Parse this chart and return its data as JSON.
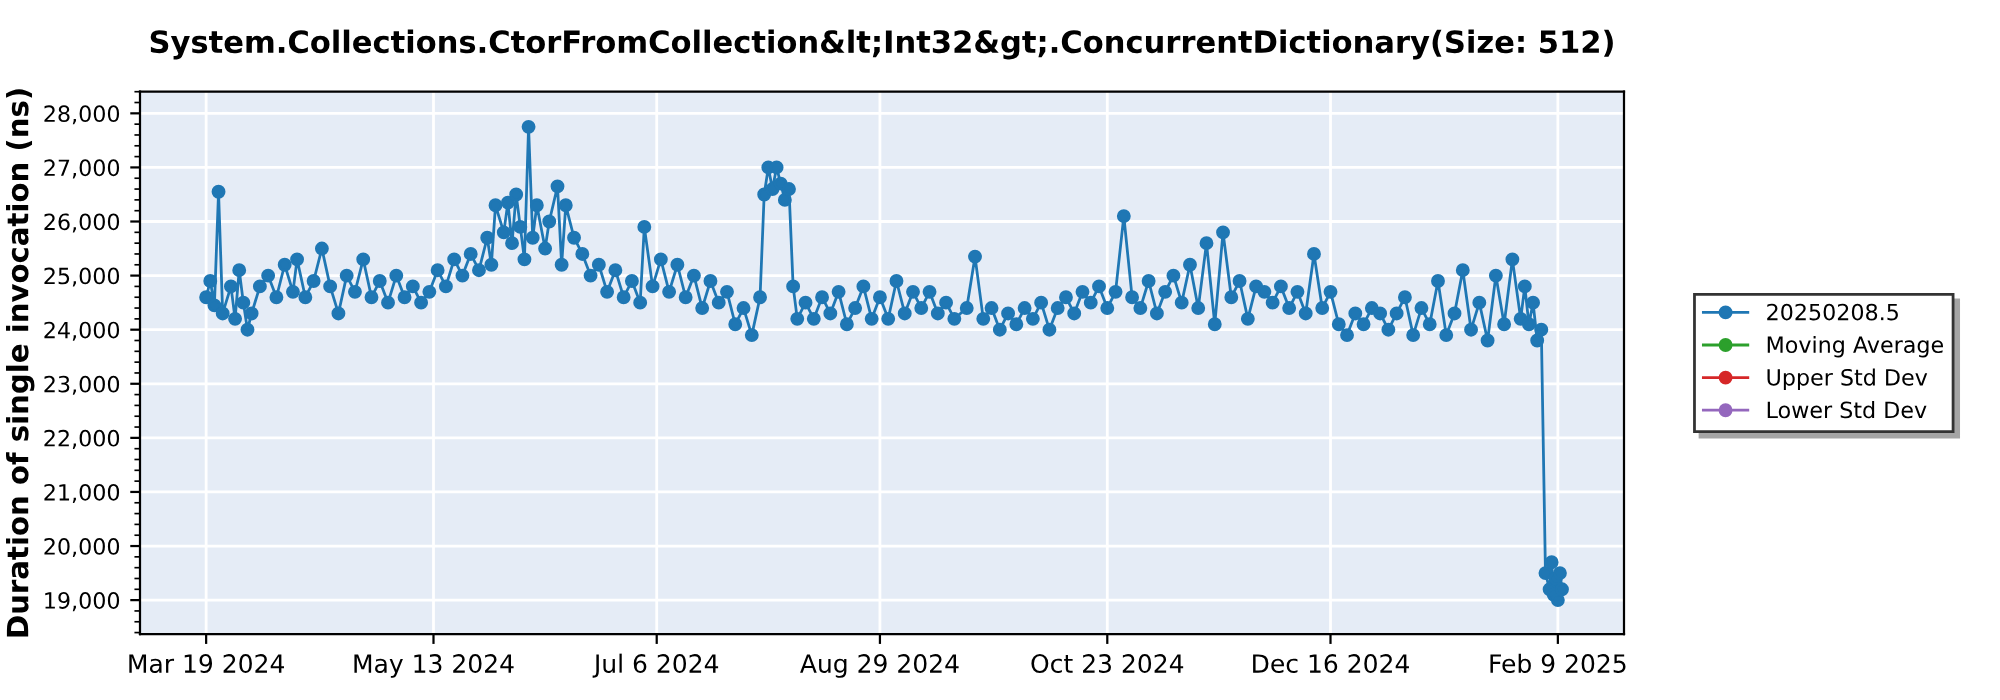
{
  "chart_data": {
    "type": "line",
    "title": "System.Collections.CtorFromCollection&lt;Int32&gt;.ConcurrentDictionary(Size: 512)",
    "ylabel": "Duration of single invocation (ns)",
    "x": [
      "2024-03-19",
      "2024-03-20",
      "2024-03-21",
      "2024-03-22",
      "2024-03-23",
      "2024-03-25",
      "2024-03-26",
      "2024-03-27",
      "2024-03-28",
      "2024-03-29",
      "2024-03-30",
      "2024-04-01",
      "2024-04-03",
      "2024-04-05",
      "2024-04-07",
      "2024-04-09",
      "2024-04-10",
      "2024-04-12",
      "2024-04-14",
      "2024-04-16",
      "2024-04-18",
      "2024-04-20",
      "2024-04-22",
      "2024-04-24",
      "2024-04-26",
      "2024-04-28",
      "2024-04-30",
      "2024-05-02",
      "2024-05-04",
      "2024-05-06",
      "2024-05-08",
      "2024-05-10",
      "2024-05-12",
      "2024-05-14",
      "2024-05-16",
      "2024-05-18",
      "2024-05-20",
      "2024-05-22",
      "2024-05-24",
      "2024-05-26",
      "2024-05-27",
      "2024-05-28",
      "2024-05-30",
      "2024-05-31",
      "2024-06-01",
      "2024-06-02",
      "2024-06-03",
      "2024-06-04",
      "2024-06-05",
      "2024-06-06",
      "2024-06-07",
      "2024-06-09",
      "2024-06-10",
      "2024-06-12",
      "2024-06-13",
      "2024-06-14",
      "2024-06-16",
      "2024-06-18",
      "2024-06-20",
      "2024-06-22",
      "2024-06-24",
      "2024-06-26",
      "2024-06-28",
      "2024-06-30",
      "2024-07-02",
      "2024-07-03",
      "2024-07-05",
      "2024-07-07",
      "2024-07-09",
      "2024-07-11",
      "2024-07-13",
      "2024-07-15",
      "2024-07-17",
      "2024-07-19",
      "2024-07-21",
      "2024-07-23",
      "2024-07-25",
      "2024-07-27",
      "2024-07-29",
      "2024-07-31",
      "2024-08-01",
      "2024-08-02",
      "2024-08-03",
      "2024-08-04",
      "2024-08-05",
      "2024-08-06",
      "2024-08-07",
      "2024-08-08",
      "2024-08-09",
      "2024-08-11",
      "2024-08-13",
      "2024-08-15",
      "2024-08-17",
      "2024-08-19",
      "2024-08-21",
      "2024-08-23",
      "2024-08-25",
      "2024-08-27",
      "2024-08-29",
      "2024-08-31",
      "2024-09-02",
      "2024-09-04",
      "2024-09-06",
      "2024-09-08",
      "2024-09-10",
      "2024-09-12",
      "2024-09-14",
      "2024-09-16",
      "2024-09-19",
      "2024-09-21",
      "2024-09-23",
      "2024-09-25",
      "2024-09-27",
      "2024-09-29",
      "2024-10-01",
      "2024-10-03",
      "2024-10-05",
      "2024-10-07",
      "2024-10-09",
      "2024-10-11",
      "2024-10-13",
      "2024-10-15",
      "2024-10-17",
      "2024-10-19",
      "2024-10-21",
      "2024-10-23",
      "2024-10-25",
      "2024-10-27",
      "2024-10-29",
      "2024-10-31",
      "2024-11-02",
      "2024-11-04",
      "2024-11-06",
      "2024-11-08",
      "2024-11-10",
      "2024-11-12",
      "2024-11-14",
      "2024-11-16",
      "2024-11-18",
      "2024-11-20",
      "2024-11-22",
      "2024-11-24",
      "2024-11-26",
      "2024-11-28",
      "2024-11-30",
      "2024-12-02",
      "2024-12-04",
      "2024-12-06",
      "2024-12-08",
      "2024-12-10",
      "2024-12-12",
      "2024-12-14",
      "2024-12-16",
      "2024-12-18",
      "2024-12-20",
      "2024-12-22",
      "2024-12-24",
      "2024-12-26",
      "2024-12-28",
      "2024-12-30",
      "2025-01-01",
      "2025-01-03",
      "2025-01-05",
      "2025-01-07",
      "2025-01-09",
      "2025-01-11",
      "2025-01-13",
      "2025-01-15",
      "2025-01-17",
      "2025-01-19",
      "2025-01-21",
      "2025-01-23",
      "2025-01-25",
      "2025-01-27",
      "2025-01-29",
      "2025-01-31",
      "2025-02-01",
      "2025-02-02",
      "2025-02-03",
      "2025-02-04",
      "2025-02-05",
      "2025-02-06",
      "2025-02-07",
      "2025-02-07T12:00",
      "2025-02-08",
      "2025-02-08T12:00",
      "2025-02-09",
      "2025-02-09T12:00",
      "2025-02-10"
    ],
    "series": [
      {
        "name": "20250208.5",
        "color": "#1f77b4",
        "values": [
          24600,
          24900,
          24450,
          26550,
          24300,
          24800,
          24200,
          25100,
          24500,
          24000,
          24300,
          24800,
          25000,
          24600,
          25200,
          24700,
          25300,
          24600,
          24900,
          25500,
          24800,
          24300,
          25000,
          24700,
          25300,
          24600,
          24900,
          24500,
          25000,
          24600,
          24800,
          24500,
          24700,
          25100,
          24800,
          25300,
          25000,
          25400,
          25100,
          25700,
          25200,
          26300,
          25800,
          26350,
          25600,
          26500,
          25900,
          25300,
          27750,
          25700,
          26300,
          25500,
          26000,
          26650,
          25200,
          26300,
          25700,
          25400,
          25000,
          25200,
          24700,
          25100,
          24600,
          24900,
          24500,
          25900,
          24800,
          25300,
          24700,
          25200,
          24600,
          25000,
          24400,
          24900,
          24500,
          24700,
          24100,
          24400,
          23900,
          24600,
          26500,
          27000,
          26600,
          27000,
          26700,
          26400,
          26600,
          24800,
          24200,
          24500,
          24200,
          24600,
          24300,
          24700,
          24100,
          24400,
          24800,
          24200,
          24600,
          24200,
          24900,
          24300,
          24700,
          24400,
          24700,
          24300,
          24500,
          24200,
          24400,
          25350,
          24200,
          24400,
          24000,
          24300,
          24100,
          24400,
          24200,
          24500,
          24000,
          24400,
          24600,
          24300,
          24700,
          24500,
          24800,
          24400,
          24700,
          26100,
          24600,
          24400,
          24900,
          24300,
          24700,
          25000,
          24500,
          25200,
          24400,
          25600,
          24100,
          25800,
          24600,
          24900,
          24200,
          24800,
          24700,
          24500,
          24800,
          24400,
          24700,
          24300,
          25400,
          24400,
          24700,
          24100,
          23900,
          24300,
          24100,
          24400,
          24300,
          24000,
          24300,
          24600,
          23900,
          24400,
          24100,
          24900,
          23900,
          24300,
          25100,
          24000,
          24500,
          23800,
          25000,
          24100,
          25300,
          24200,
          24800,
          24100,
          24500,
          23800,
          24000,
          19500,
          19200,
          19700,
          19100,
          19400,
          19000,
          19500,
          19200
        ]
      },
      {
        "name": "Moving Average",
        "color": "#2ca02c",
        "values": [
          null,
          null,
          null,
          null,
          null,
          null,
          null,
          null,
          null,
          null,
          null,
          null,
          null,
          null,
          null,
          null,
          null,
          null,
          null,
          null,
          null,
          null,
          null,
          null,
          null,
          null,
          null,
          null,
          null,
          null,
          null,
          null,
          null,
          null,
          null,
          null,
          null,
          null,
          null,
          null,
          null,
          null,
          null,
          null,
          null,
          null,
          null,
          null,
          null,
          null,
          null,
          null,
          null,
          null,
          null,
          null,
          null,
          null,
          null,
          null,
          null,
          null,
          null,
          null,
          null,
          null,
          null,
          null,
          null,
          null,
          null,
          null,
          null,
          null,
          null,
          null,
          null,
          null,
          null,
          null,
          null,
          null,
          null,
          null,
          null,
          null,
          null,
          null,
          null,
          null,
          null,
          null,
          null,
          null,
          null,
          null,
          null,
          null,
          null,
          null,
          null,
          null,
          null,
          null,
          null,
          null,
          null,
          null,
          null,
          null,
          null,
          null,
          null,
          null,
          null,
          null,
          null,
          null,
          null,
          null,
          null,
          null,
          null,
          null,
          null,
          null,
          null,
          null,
          null,
          null,
          null,
          null,
          null,
          null,
          null,
          null,
          null,
          null,
          null,
          null,
          null,
          null,
          null,
          null,
          null,
          null,
          null,
          null,
          null,
          null,
          null,
          null,
          null,
          null,
          null,
          null,
          null,
          null,
          null,
          null,
          null,
          null,
          null,
          null,
          null,
          null,
          null,
          null,
          null,
          null,
          null,
          null,
          null,
          null,
          null,
          null,
          null,
          null,
          null,
          null,
          null,
          null,
          null,
          null,
          null,
          null,
          null,
          null,
          null
        ]
      },
      {
        "name": "Upper Std Dev",
        "color": "#d62728",
        "values": [
          null,
          null,
          null,
          null,
          null,
          null,
          null,
          null,
          null,
          null,
          null,
          null,
          null,
          null,
          null,
          null,
          null,
          null,
          null,
          null,
          null,
          null,
          null,
          null,
          null,
          null,
          null,
          null,
          null,
          null,
          null,
          null,
          null,
          null,
          null,
          null,
          null,
          null,
          null,
          null,
          null,
          null,
          null,
          null,
          null,
          null,
          null,
          null,
          null,
          null,
          null,
          null,
          null,
          null,
          null,
          null,
          null,
          null,
          null,
          null,
          null,
          null,
          null,
          null,
          null,
          null,
          null,
          null,
          null,
          null,
          null,
          null,
          null,
          null,
          null,
          null,
          null,
          null,
          null,
          null,
          null,
          null,
          null,
          null,
          null,
          null,
          null,
          null,
          null,
          null,
          null,
          null,
          null,
          null,
          null,
          null,
          null,
          null,
          null,
          null,
          null,
          null,
          null,
          null,
          null,
          null,
          null,
          null,
          null,
          null,
          null,
          null,
          null,
          null,
          null,
          null,
          null,
          null,
          null,
          null,
          null,
          null,
          null,
          null,
          null,
          null,
          null,
          null,
          null,
          null,
          null,
          null,
          null,
          null,
          null,
          null,
          null,
          null,
          null,
          null,
          null,
          null,
          null,
          null,
          null,
          null,
          null,
          null,
          null,
          null,
          null,
          null,
          null,
          null,
          null,
          null,
          null,
          null,
          null,
          null,
          null,
          null,
          null,
          null,
          null,
          null,
          null,
          null,
          null,
          null,
          null,
          null,
          null,
          null,
          null,
          null,
          null,
          null,
          null,
          null,
          null,
          null,
          null,
          null,
          null,
          null,
          null,
          null,
          null
        ]
      },
      {
        "name": "Lower Std Dev",
        "color": "#9467bd",
        "values": [
          null,
          null,
          null,
          null,
          null,
          null,
          null,
          null,
          null,
          null,
          null,
          null,
          null,
          null,
          null,
          null,
          null,
          null,
          null,
          null,
          null,
          null,
          null,
          null,
          null,
          null,
          null,
          null,
          null,
          null,
          null,
          null,
          null,
          null,
          null,
          null,
          null,
          null,
          null,
          null,
          null,
          null,
          null,
          null,
          null,
          null,
          null,
          null,
          null,
          null,
          null,
          null,
          null,
          null,
          null,
          null,
          null,
          null,
          null,
          null,
          null,
          null,
          null,
          null,
          null,
          null,
          null,
          null,
          null,
          null,
          null,
          null,
          null,
          null,
          null,
          null,
          null,
          null,
          null,
          null,
          null,
          null,
          null,
          null,
          null,
          null,
          null,
          null,
          null,
          null,
          null,
          null,
          null,
          null,
          null,
          null,
          null,
          null,
          null,
          null,
          null,
          null,
          null,
          null,
          null,
          null,
          null,
          null,
          null,
          null,
          null,
          null,
          null,
          null,
          null,
          null,
          null,
          null,
          null,
          null,
          null,
          null,
          null,
          null,
          null,
          null,
          null,
          null,
          null,
          null,
          null,
          null,
          null,
          null,
          null,
          null,
          null,
          null,
          null,
          null,
          null,
          null,
          null,
          null,
          null,
          null,
          null,
          null,
          null,
          null,
          null,
          null,
          null,
          null,
          null,
          null,
          null,
          null,
          null,
          null,
          null,
          null,
          null,
          null,
          null,
          null,
          null,
          null,
          null,
          null,
          null,
          null,
          null,
          null,
          null,
          null,
          null,
          null,
          null,
          null,
          null,
          null,
          null,
          null,
          null,
          null,
          null,
          null,
          null
        ]
      }
    ],
    "xlim": [
      "2024-03-03",
      "2025-02-25"
    ],
    "xticks": [
      {
        "value": "2024-03-19",
        "label": "Mar 19 2024"
      },
      {
        "value": "2024-05-13",
        "label": "May 13 2024"
      },
      {
        "value": "2024-07-06",
        "label": "Jul 6 2024"
      },
      {
        "value": "2024-08-29",
        "label": "Aug 29 2024"
      },
      {
        "value": "2024-10-23",
        "label": "Oct 23 2024"
      },
      {
        "value": "2024-12-16",
        "label": "Dec 16 2024"
      },
      {
        "value": "2025-02-09",
        "label": "Feb 9 2025"
      }
    ],
    "ylim": [
      18370,
      28400
    ],
    "yticks": [
      {
        "value": 19000,
        "label": "19,000"
      },
      {
        "value": 20000,
        "label": "20,000"
      },
      {
        "value": 21000,
        "label": "21,000"
      },
      {
        "value": 22000,
        "label": "22,000"
      },
      {
        "value": 23000,
        "label": "23,000"
      },
      {
        "value": 24000,
        "label": "24,000"
      },
      {
        "value": 25000,
        "label": "25,000"
      },
      {
        "value": 26000,
        "label": "26,000"
      },
      {
        "value": 27000,
        "label": "27,000"
      },
      {
        "value": 28000,
        "label": "28,000"
      }
    ],
    "grid": true,
    "legend": "right",
    "marker": "circle",
    "line_style": "solid"
  }
}
